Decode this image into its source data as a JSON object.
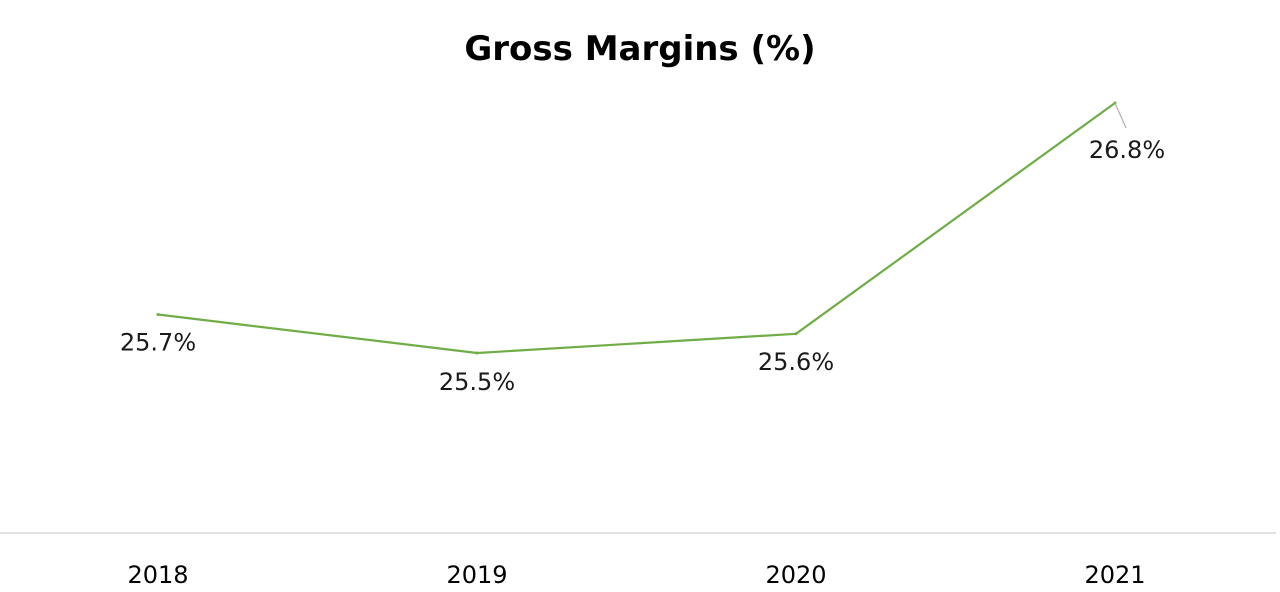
{
  "chart_data": {
    "type": "line",
    "title": "Gross Margins (%)",
    "xlabel": "",
    "ylabel": "",
    "categories": [
      "2018",
      "2019",
      "2020",
      "2021"
    ],
    "series": [
      {
        "values": [
          25.7,
          25.5,
          25.6,
          26.8
        ],
        "data_labels": [
          "25.7%",
          "25.5%",
          "25.6%",
          "26.8%"
        ]
      }
    ],
    "ylim": [
      25.0,
      27.0
    ],
    "grid": false,
    "legend": "none",
    "colors": {
      "line": "#70ad47",
      "axis": "#d9d9d9",
      "leader": "#a6a6a6",
      "text": "#000000"
    }
  }
}
